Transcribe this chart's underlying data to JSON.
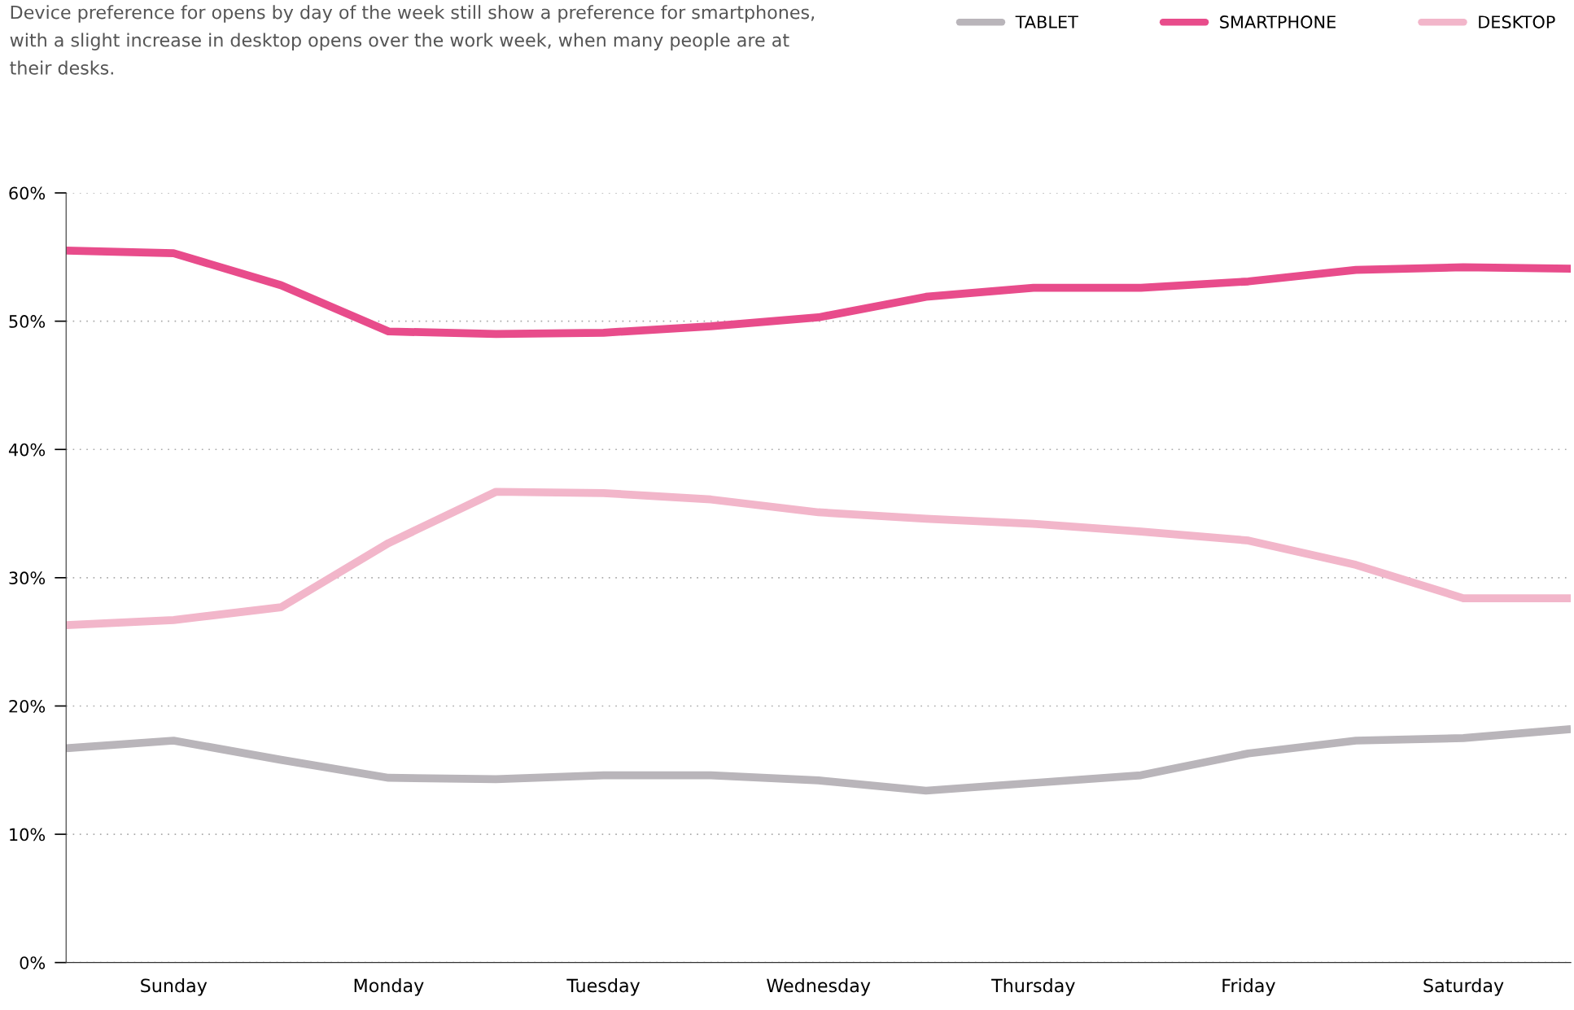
{
  "chart_data": {
    "type": "line",
    "title": "Device preference for opens by day of the week still show a preference for smartphones, with a slight increase in desktop opens over the work week, when many people are at their desks.",
    "categories": [
      null,
      "Sunday",
      null,
      "Monday",
      null,
      "Tuesday",
      null,
      "Wednesday",
      null,
      "Thursday",
      null,
      "Friday",
      null,
      "Saturday",
      null
    ],
    "series": [
      {
        "name": "TABLET",
        "color": "#b9b5ba",
        "values": [
          16.7,
          17.3,
          15.8,
          14.4,
          14.3,
          14.6,
          14.6,
          14.2,
          13.4,
          14.0,
          14.6,
          16.3,
          17.3,
          17.5,
          18.2
        ]
      },
      {
        "name": "SMARTPHONE",
        "color": "#e84c8b",
        "values": [
          55.5,
          55.3,
          52.8,
          49.2,
          49.0,
          49.1,
          49.6,
          50.3,
          51.9,
          52.6,
          52.6,
          53.1,
          54.0,
          54.2,
          54.1
        ]
      },
      {
        "name": "DESKTOP",
        "color": "#f2b6ca",
        "values": [
          26.3,
          26.7,
          27.7,
          32.7,
          36.7,
          36.6,
          36.1,
          35.1,
          34.6,
          34.2,
          33.6,
          32.9,
          31.0,
          28.4,
          28.4
        ]
      }
    ],
    "ylim": [
      0,
      60
    ],
    "yticks": [
      {
        "value": 0,
        "label": "0%"
      },
      {
        "value": 10,
        "label": "10%"
      },
      {
        "value": 20,
        "label": "20%"
      },
      {
        "value": 30,
        "label": "30%"
      },
      {
        "value": 40,
        "label": "40%"
      },
      {
        "value": 50,
        "label": "50%"
      },
      {
        "value": 60,
        "label": "60%"
      }
    ],
    "grid": "y",
    "legend": "top right",
    "marker": "none",
    "line_style": "solid"
  }
}
